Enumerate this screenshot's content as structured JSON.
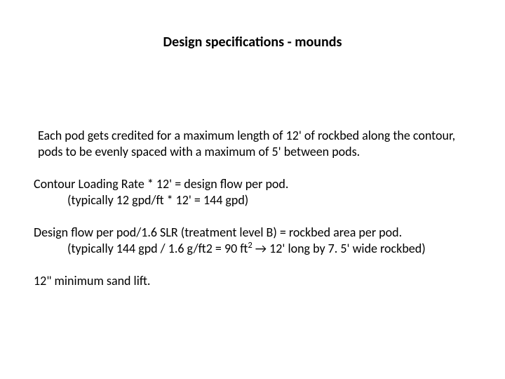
{
  "title": "Design specifications - mounds",
  "intro": "Each pod gets credited for a maximum length of 12' of rockbed along the contour, pods to be evenly spaced with a maximum of  5' between pods.",
  "p1_line1": "Contour Loading Rate * 12' = design flow per pod.",
  "p1_line2": "(typically   12 gpd/ft * 12' = 144 gpd)",
  "p2_line1": "Design flow per pod/1.6 SLR (treatment level B) = rockbed area per pod.",
  "p2_line2_a": "(typically   144 gpd / 1.6 g/ft",
  "p2_line2_b": "2 = 90 ft",
  "p2_line2_c": "   →  12' long by 7. 5' wide rockbed)",
  "p3": "12\" minimum sand lift.",
  "sup2": "2"
}
